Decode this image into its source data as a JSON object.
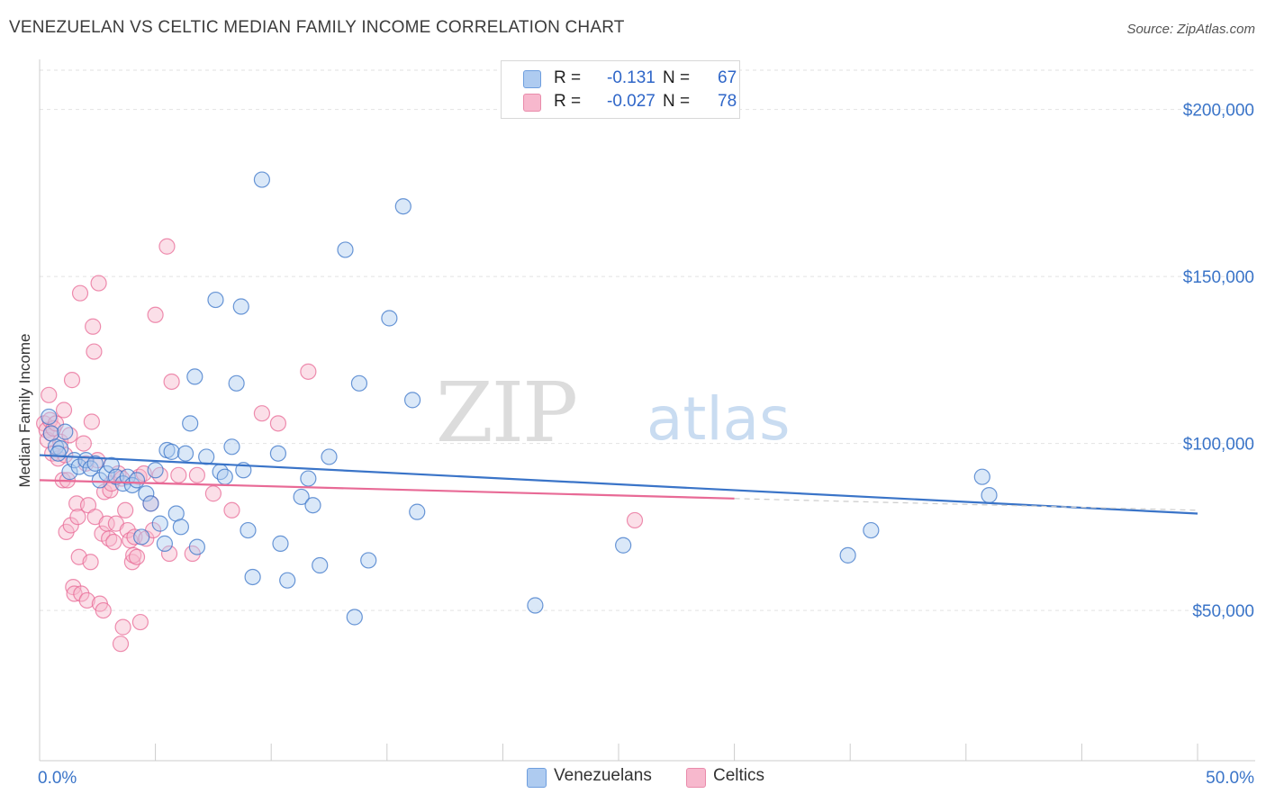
{
  "title": "VENEZUELAN VS CELTIC MEDIAN FAMILY INCOME CORRELATION CHART",
  "source": "Source: ZipAtlas.com",
  "watermark": {
    "zip": "ZIP",
    "atlas": "atlas"
  },
  "legend": {
    "rows": [
      {
        "r_label": "R =",
        "r_value": "-0.131",
        "n_label": "N =",
        "n_value": "67",
        "color": "#aecbf0"
      },
      {
        "r_label": "R =",
        "r_value": "-0.027",
        "n_label": "N =",
        "n_value": "78",
        "color": "#f7b8cd"
      }
    ]
  },
  "bottom_legend": [
    {
      "label": "Venezuelans",
      "color": "#aecbf0"
    },
    {
      "label": "Celtics",
      "color": "#f7b8cd"
    }
  ],
  "chart_data": {
    "type": "scatter",
    "title": "VENEZUELAN VS CELTIC MEDIAN FAMILY INCOME CORRELATION CHART",
    "xlabel": "",
    "ylabel": "Median Family Income",
    "xlim": [
      0,
      50
    ],
    "ylim": [
      5000,
      215000
    ],
    "x_tick_labels": [
      {
        "value": 0,
        "label": "0.0%"
      },
      {
        "value": 50,
        "label": "50.0%"
      }
    ],
    "y_tick_labels": [
      {
        "value": 50000,
        "label": "$50,000"
      },
      {
        "value": 100000,
        "label": "$100,000"
      },
      {
        "value": 150000,
        "label": "$150,000"
      },
      {
        "value": 200000,
        "label": "$200,000"
      }
    ],
    "grid": true,
    "series": [
      {
        "name": "Venezuelans",
        "color": "#3a74c8",
        "fill": "#aecbf0",
        "r": -0.131,
        "n": 67,
        "trend": {
          "x0": 0,
          "y0": 96500,
          "x1": 50,
          "y1": 79000,
          "dashed_from": null
        },
        "points": [
          [
            0.4,
            108000
          ],
          [
            0.5,
            103000
          ],
          [
            0.7,
            99000
          ],
          [
            0.9,
            98500
          ],
          [
            1.1,
            103500
          ],
          [
            1.3,
            91500
          ],
          [
            1.5,
            95000
          ],
          [
            1.7,
            93000
          ],
          [
            2.0,
            95000
          ],
          [
            2.2,
            92500
          ],
          [
            2.4,
            94000
          ],
          [
            2.6,
            89000
          ],
          [
            2.9,
            91000
          ],
          [
            3.1,
            93500
          ],
          [
            3.3,
            90000
          ],
          [
            3.6,
            88000
          ],
          [
            3.8,
            90000
          ],
          [
            4.0,
            87500
          ],
          [
            4.2,
            89000
          ],
          [
            4.4,
            72000
          ],
          [
            4.6,
            85000
          ],
          [
            4.8,
            82000
          ],
          [
            5.0,
            92000
          ],
          [
            5.2,
            76000
          ],
          [
            5.4,
            70000
          ],
          [
            5.5,
            98000
          ],
          [
            5.7,
            97500
          ],
          [
            5.9,
            79000
          ],
          [
            6.1,
            75000
          ],
          [
            6.3,
            97000
          ],
          [
            6.5,
            106000
          ],
          [
            6.7,
            120000
          ],
          [
            6.8,
            69000
          ],
          [
            7.2,
            96000
          ],
          [
            7.6,
            143000
          ],
          [
            7.8,
            91500
          ],
          [
            8.0,
            90000
          ],
          [
            8.3,
            99000
          ],
          [
            8.5,
            118000
          ],
          [
            8.7,
            141000
          ],
          [
            8.8,
            92000
          ],
          [
            9.0,
            74000
          ],
          [
            9.2,
            60000
          ],
          [
            9.6,
            179000
          ],
          [
            10.3,
            97000
          ],
          [
            10.4,
            70000
          ],
          [
            10.7,
            59000
          ],
          [
            11.3,
            84000
          ],
          [
            11.6,
            89500
          ],
          [
            11.8,
            81500
          ],
          [
            12.1,
            63500
          ],
          [
            12.5,
            96000
          ],
          [
            13.2,
            158000
          ],
          [
            13.6,
            48000
          ],
          [
            13.8,
            118000
          ],
          [
            14.2,
            65000
          ],
          [
            15.1,
            137500
          ],
          [
            15.7,
            171000
          ],
          [
            16.1,
            113000
          ],
          [
            16.3,
            79500
          ],
          [
            21.4,
            51500
          ],
          [
            25.2,
            69500
          ],
          [
            34.9,
            66500
          ],
          [
            35.9,
            74000
          ],
          [
            40.7,
            90000
          ],
          [
            41.0,
            84500
          ],
          [
            0.8,
            97000
          ]
        ]
      },
      {
        "name": "Celtics",
        "color": "#e86a96",
        "fill": "#f7b8cd",
        "r": -0.027,
        "n": 78,
        "trend": {
          "x0": 0,
          "y0": 89000,
          "x1": 30,
          "y1": 83500,
          "dashed_from": 30,
          "dashed_to_x": 50,
          "dashed_to_y": 80000
        },
        "points": [
          [
            0.2,
            106000
          ],
          [
            0.3,
            104000
          ],
          [
            0.35,
            101000
          ],
          [
            0.4,
            114500
          ],
          [
            0.45,
            107000
          ],
          [
            0.5,
            103000
          ],
          [
            0.55,
            97000
          ],
          [
            0.6,
            104500
          ],
          [
            0.7,
            106000
          ],
          [
            0.8,
            95500
          ],
          [
            0.9,
            100500
          ],
          [
            1.0,
            89000
          ],
          [
            1.05,
            110000
          ],
          [
            1.1,
            96500
          ],
          [
            1.15,
            73500
          ],
          [
            1.2,
            89000
          ],
          [
            1.3,
            102500
          ],
          [
            1.35,
            75500
          ],
          [
            1.4,
            119000
          ],
          [
            1.45,
            57000
          ],
          [
            1.5,
            55000
          ],
          [
            1.6,
            82000
          ],
          [
            1.65,
            78000
          ],
          [
            1.7,
            66000
          ],
          [
            1.75,
            145000
          ],
          [
            1.8,
            55000
          ],
          [
            1.9,
            100000
          ],
          [
            2.0,
            94000
          ],
          [
            2.05,
            53000
          ],
          [
            2.1,
            81500
          ],
          [
            2.2,
            64500
          ],
          [
            2.25,
            106500
          ],
          [
            2.3,
            135000
          ],
          [
            2.35,
            127500
          ],
          [
            2.4,
            78000
          ],
          [
            2.5,
            95000
          ],
          [
            2.55,
            148000
          ],
          [
            2.6,
            52000
          ],
          [
            2.7,
            73000
          ],
          [
            2.75,
            50000
          ],
          [
            2.8,
            85500
          ],
          [
            2.9,
            76000
          ],
          [
            3.0,
            71500
          ],
          [
            3.05,
            86000
          ],
          [
            3.1,
            88000
          ],
          [
            3.2,
            70500
          ],
          [
            3.3,
            76000
          ],
          [
            3.4,
            91000
          ],
          [
            3.5,
            40000
          ],
          [
            3.55,
            89500
          ],
          [
            3.6,
            45000
          ],
          [
            3.7,
            80000
          ],
          [
            3.8,
            74000
          ],
          [
            3.9,
            71000
          ],
          [
            4.0,
            64500
          ],
          [
            4.05,
            66500
          ],
          [
            4.1,
            72000
          ],
          [
            4.2,
            66000
          ],
          [
            4.3,
            90000
          ],
          [
            4.35,
            46500
          ],
          [
            4.5,
            91000
          ],
          [
            4.6,
            71500
          ],
          [
            4.8,
            82000
          ],
          [
            4.9,
            74000
          ],
          [
            5.0,
            138500
          ],
          [
            5.2,
            90500
          ],
          [
            5.5,
            159000
          ],
          [
            5.6,
            67000
          ],
          [
            5.7,
            118500
          ],
          [
            6.0,
            90500
          ],
          [
            6.6,
            67000
          ],
          [
            6.8,
            90500
          ],
          [
            7.5,
            85000
          ],
          [
            8.3,
            80000
          ],
          [
            9.6,
            109000
          ],
          [
            10.3,
            106000
          ],
          [
            11.6,
            121500
          ],
          [
            25.7,
            77000
          ]
        ]
      }
    ]
  }
}
